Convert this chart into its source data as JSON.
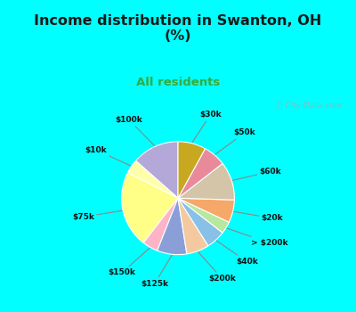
{
  "title": "Income distribution in Swanton, OH\n(%)",
  "subtitle": "All residents",
  "title_color": "#1a1a1a",
  "subtitle_color": "#3aaa3a",
  "background_top": "#00ffff",
  "background_chart_color": "#cce8d0",
  "watermark": "ⓘ City-Data.com",
  "labels": [
    "$100k",
    "$10k",
    "$75k",
    "$150k",
    "$125k",
    "$200k",
    "$40k",
    "> $200k",
    "$20k",
    "$60k",
    "$50k",
    "$30k"
  ],
  "values": [
    13.5,
    4.0,
    22.0,
    4.5,
    8.5,
    6.5,
    5.5,
    3.5,
    6.5,
    11.0,
    6.5,
    8.0
  ],
  "colors": [
    "#b3a8d8",
    "#ffffaa",
    "#ffff88",
    "#ffb3c6",
    "#8a9fd8",
    "#f5c9a0",
    "#88c0e8",
    "#b8e8a0",
    "#f5a868",
    "#d4c4a8",
    "#e88a9a",
    "#c8a820"
  ],
  "startangle": 90
}
